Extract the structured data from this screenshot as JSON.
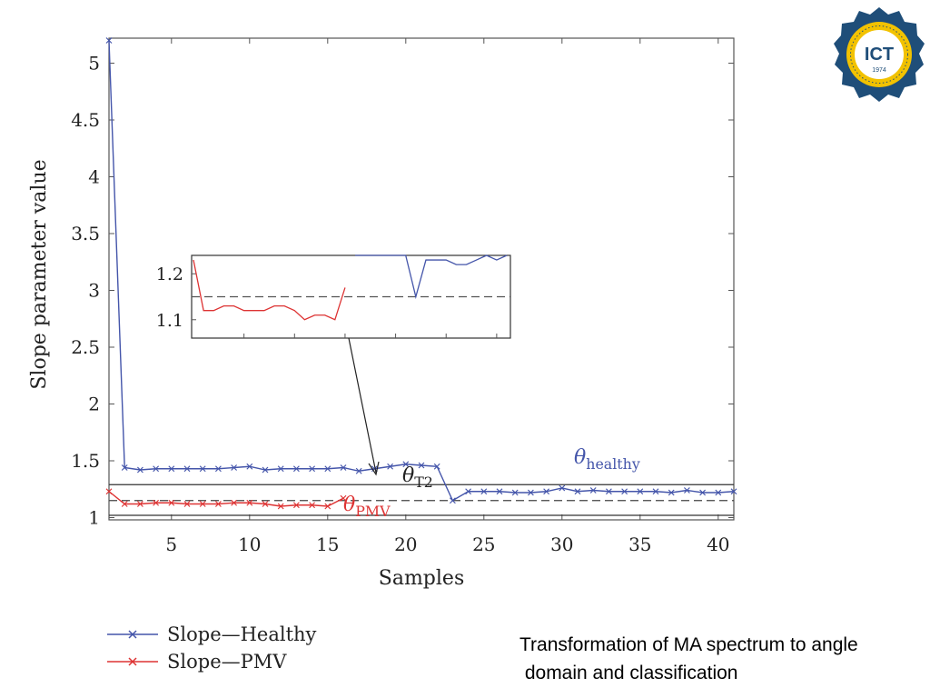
{
  "chart_data": {
    "type": "line",
    "xlabel": "Samples",
    "ylabel": "Slope parameter value",
    "xlim": [
      1,
      41
    ],
    "ylim": [
      0.98,
      5.22
    ],
    "xticks": [
      5,
      10,
      15,
      20,
      25,
      30,
      35,
      40
    ],
    "yticks": [
      1,
      1.5,
      2,
      2.5,
      3,
      3.5,
      4,
      4.5,
      5
    ],
    "grid": false,
    "legend_position": "below",
    "series": [
      {
        "name": "Slope—Healthy",
        "color": "#4455aa",
        "marker": "x",
        "x": [
          1,
          2,
          3,
          4,
          5,
          6,
          7,
          8,
          9,
          10,
          11,
          12,
          13,
          14,
          15,
          16,
          17,
          18,
          19,
          20,
          21,
          22,
          23,
          24,
          25,
          26,
          27,
          28,
          29,
          30,
          31,
          32,
          33,
          34,
          35,
          36,
          37,
          38,
          39,
          40,
          41
        ],
        "y": [
          5.2,
          1.44,
          1.42,
          1.43,
          1.43,
          1.43,
          1.43,
          1.43,
          1.44,
          1.45,
          1.42,
          1.43,
          1.43,
          1.43,
          1.43,
          1.44,
          1.41,
          1.43,
          1.45,
          1.47,
          1.46,
          1.45,
          1.15,
          1.23,
          1.23,
          1.23,
          1.22,
          1.22,
          1.23,
          1.26,
          1.23,
          1.24,
          1.23,
          1.23,
          1.23,
          1.23,
          1.22,
          1.24,
          1.22,
          1.22,
          1.23
        ]
      },
      {
        "name": "Slope—PMV",
        "color": "#dd3333",
        "marker": "x",
        "x": [
          1,
          2,
          3,
          4,
          5,
          6,
          7,
          8,
          9,
          10,
          11,
          12,
          13,
          14,
          15,
          16
        ],
        "y": [
          1.23,
          1.12,
          1.12,
          1.13,
          1.13,
          1.12,
          1.12,
          1.12,
          1.13,
          1.13,
          1.12,
          1.1,
          1.11,
          1.11,
          1.1,
          1.17
        ]
      }
    ],
    "thresholds": {
      "healthy": 1.29,
      "t2": 1.15,
      "pmv": 1.02
    },
    "annotations": {
      "theta": "θ",
      "healthy_sub": "healthy",
      "t2_sub": "T2",
      "pmv_sub": "PMV"
    },
    "inset": {
      "yticks": [
        1.1,
        1.2
      ]
    }
  },
  "legend": {
    "items": [
      {
        "label": "Slope—Healthy",
        "color": "#4455aa"
      },
      {
        "label": "Slope—PMV",
        "color": "#dd3333"
      }
    ]
  },
  "caption": {
    "line1": "Transformation of MA spectrum to angle",
    "line2": " domain and classification"
  },
  "logo": {
    "text": "ICT",
    "year": "1974",
    "gear_color": "#1f4e79",
    "ring_color": "#f2c200"
  }
}
